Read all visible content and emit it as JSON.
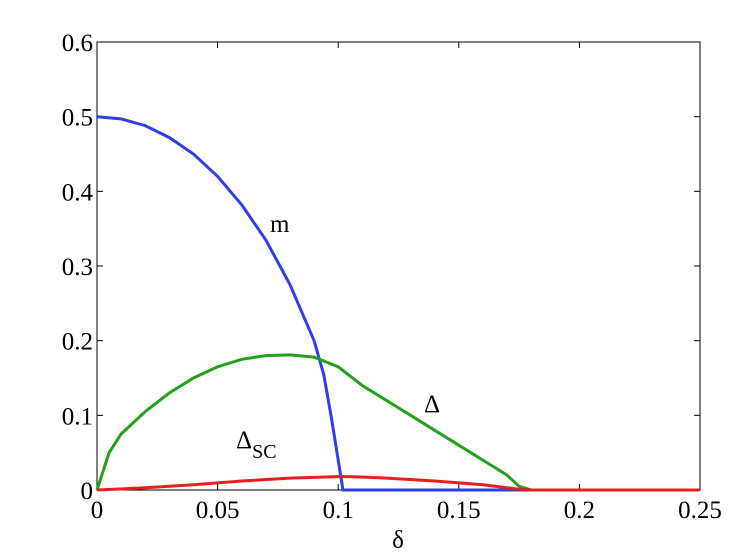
{
  "chart_data": {
    "type": "line",
    "x_label": "δ",
    "xlim": [
      0,
      0.25
    ],
    "xticks": [
      0,
      0.05,
      0.1,
      0.15,
      0.2,
      0.25
    ],
    "ylim": [
      0,
      0.6
    ],
    "yticks": [
      0,
      0.1,
      0.2,
      0.3,
      0.4,
      0.5,
      0.6
    ],
    "series": [
      {
        "name": "m",
        "color": "#2f3fe8",
        "x": [
          0,
          0.01,
          0.02,
          0.03,
          0.04,
          0.05,
          0.06,
          0.07,
          0.08,
          0.09,
          0.094,
          0.097,
          0.1,
          0.102,
          0.25
        ],
        "values": [
          0.5,
          0.497,
          0.488,
          0.472,
          0.45,
          0.42,
          0.382,
          0.335,
          0.275,
          0.2,
          0.155,
          0.1,
          0.04,
          0,
          0
        ]
      },
      {
        "name": "Δ",
        "color": "#22a21a",
        "x": [
          0,
          0.005,
          0.01,
          0.02,
          0.03,
          0.04,
          0.05,
          0.06,
          0.07,
          0.08,
          0.09,
          0.1,
          0.11,
          0.12,
          0.13,
          0.14,
          0.15,
          0.16,
          0.17,
          0.175,
          0.18,
          0.25
        ],
        "values": [
          0,
          0.05,
          0.075,
          0.105,
          0.13,
          0.15,
          0.165,
          0.175,
          0.18,
          0.181,
          0.178,
          0.165,
          0.14,
          0.12,
          0.1,
          0.08,
          0.06,
          0.04,
          0.02,
          0.005,
          0,
          0
        ]
      },
      {
        "name": "Δ",
        "subscript": "SC",
        "color": "#e8201c",
        "x": [
          0,
          0.02,
          0.04,
          0.06,
          0.08,
          0.1,
          0.105,
          0.12,
          0.14,
          0.16,
          0.175,
          0.18,
          0.25
        ],
        "values": [
          0,
          0.003,
          0.007,
          0.012,
          0.016,
          0.018,
          0.018,
          0.016,
          0.012,
          0.007,
          0.001,
          0,
          0
        ]
      }
    ]
  }
}
